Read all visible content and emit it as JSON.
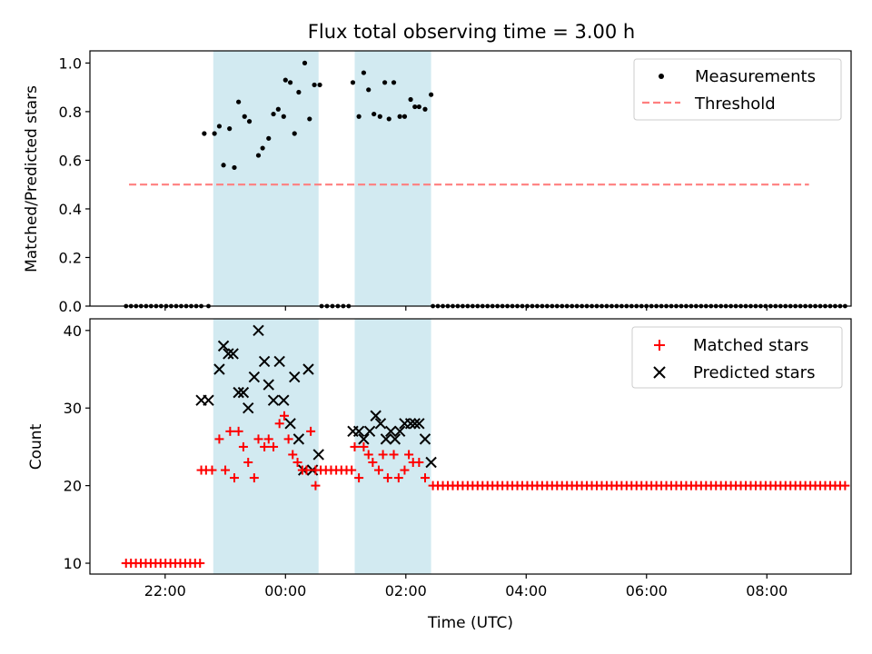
{
  "chart_data": {
    "title": "Flux total observing time = 3.00 h",
    "xlabel": "Time (UTC)",
    "x_unit": "hours (UTC); values ≥ 24 are times after midnight of the next day",
    "xlim": [
      20.75,
      33.4
    ],
    "xticks": [
      {
        "x": 22,
        "label": "22:00"
      },
      {
        "x": 24,
        "label": "00:00"
      },
      {
        "x": 26,
        "label": "02:00"
      },
      {
        "x": 28,
        "label": "04:00"
      },
      {
        "x": 30,
        "label": "06:00"
      },
      {
        "x": 32,
        "label": "08:00"
      }
    ],
    "colors": {
      "measurements": "#000000",
      "threshold": "#ff7f7f",
      "matched": "#ff0000",
      "predicted": "#000000",
      "span": "#add8e6"
    },
    "observing_spans": [
      {
        "start": 22.8,
        "end": 24.55
      },
      {
        "start": 25.15,
        "end": 26.42
      }
    ],
    "panels": [
      {
        "type": "scatter",
        "ylabel": "Matched/Predicted stars",
        "ylim": [
          0,
          1.05
        ],
        "yticks": [
          "0.0",
          "0.2",
          "0.4",
          "0.6",
          "0.8",
          "1.0"
        ],
        "legend": {
          "placement": "top-right",
          "entries": [
            "Measurements",
            "Threshold"
          ]
        },
        "threshold": {
          "name": "Threshold",
          "y": 0.5,
          "x_from": 21.4,
          "x_to": 32.7
        },
        "measurements": {
          "name": "Measurements",
          "zero_runs": [
            {
              "from": 21.35,
              "to": 22.6,
              "step": 0.083
            },
            {
              "from": 22.72,
              "to": 22.72,
              "step": 0.1
            },
            {
              "from": 24.6,
              "to": 25.05,
              "step": 0.083
            },
            {
              "from": 26.45,
              "to": 33.3,
              "step": 0.083
            }
          ],
          "points": [
            [
              22.65,
              0.71
            ],
            [
              22.82,
              0.71
            ],
            [
              22.9,
              0.74
            ],
            [
              22.97,
              0.58
            ],
            [
              23.07,
              0.73
            ],
            [
              23.15,
              0.57
            ],
            [
              23.22,
              0.84
            ],
            [
              23.32,
              0.78
            ],
            [
              23.4,
              0.76
            ],
            [
              23.55,
              0.62
            ],
            [
              23.62,
              0.65
            ],
            [
              23.72,
              0.69
            ],
            [
              23.8,
              0.79
            ],
            [
              23.88,
              0.81
            ],
            [
              23.97,
              0.78
            ],
            [
              24.0,
              0.93
            ],
            [
              24.08,
              0.92
            ],
            [
              24.15,
              0.71
            ],
            [
              24.22,
              0.88
            ],
            [
              24.32,
              1.0
            ],
            [
              24.4,
              0.77
            ],
            [
              24.48,
              0.91
            ],
            [
              24.57,
              0.91
            ],
            [
              25.12,
              0.92
            ],
            [
              25.22,
              0.78
            ],
            [
              25.3,
              0.96
            ],
            [
              25.38,
              0.89
            ],
            [
              25.47,
              0.79
            ],
            [
              25.57,
              0.78
            ],
            [
              25.65,
              0.92
            ],
            [
              25.72,
              0.77
            ],
            [
              25.8,
              0.92
            ],
            [
              25.9,
              0.78
            ],
            [
              25.98,
              0.78
            ],
            [
              26.08,
              0.85
            ],
            [
              26.15,
              0.82
            ],
            [
              26.22,
              0.82
            ],
            [
              26.32,
              0.81
            ],
            [
              26.42,
              0.87
            ]
          ]
        }
      },
      {
        "type": "scatter",
        "ylabel": "Count",
        "ylim": [
          8.6,
          41.5
        ],
        "yticks": [
          "10",
          "20",
          "30",
          "40"
        ],
        "legend": {
          "placement": "top-right",
          "entries": [
            "Matched stars",
            "Predicted stars"
          ]
        },
        "matched": {
          "name": "Matched stars",
          "runs": [
            {
              "from": 21.35,
              "to": 22.58,
              "step": 0.083,
              "y": 10
            },
            {
              "from": 24.5,
              "to": 25.1,
              "step": 0.083,
              "y": 22
            },
            {
              "from": 26.45,
              "to": 33.3,
              "step": 0.083,
              "y": 20
            }
          ],
          "points": [
            [
              22.6,
              22
            ],
            [
              22.68,
              22
            ],
            [
              22.78,
              22
            ],
            [
              22.9,
              26
            ],
            [
              23.0,
              22
            ],
            [
              23.08,
              27
            ],
            [
              23.15,
              21
            ],
            [
              23.22,
              27
            ],
            [
              23.3,
              25
            ],
            [
              23.38,
              23
            ],
            [
              23.48,
              21
            ],
            [
              23.55,
              26
            ],
            [
              23.65,
              25
            ],
            [
              23.72,
              26
            ],
            [
              23.8,
              25
            ],
            [
              23.9,
              28
            ],
            [
              23.98,
              29
            ],
            [
              24.05,
              26
            ],
            [
              24.12,
              24
            ],
            [
              24.2,
              23
            ],
            [
              24.28,
              22
            ],
            [
              24.35,
              22
            ],
            [
              24.42,
              27
            ],
            [
              24.5,
              20
            ],
            [
              25.15,
              25
            ],
            [
              25.22,
              21
            ],
            [
              25.3,
              25
            ],
            [
              25.38,
              24
            ],
            [
              25.45,
              23
            ],
            [
              25.55,
              22
            ],
            [
              25.62,
              24
            ],
            [
              25.7,
              21
            ],
            [
              25.8,
              24
            ],
            [
              25.88,
              21
            ],
            [
              25.98,
              22
            ],
            [
              26.05,
              24
            ],
            [
              26.12,
              23
            ],
            [
              26.22,
              23
            ],
            [
              26.32,
              21
            ]
          ]
        },
        "predicted": {
          "name": "Predicted stars",
          "points": [
            [
              22.6,
              31
            ],
            [
              22.72,
              31
            ],
            [
              22.9,
              35
            ],
            [
              22.97,
              38
            ],
            [
              23.05,
              37
            ],
            [
              23.13,
              37
            ],
            [
              23.22,
              32
            ],
            [
              23.3,
              32
            ],
            [
              23.38,
              30
            ],
            [
              23.48,
              34
            ],
            [
              23.55,
              40
            ],
            [
              23.65,
              36
            ],
            [
              23.72,
              33
            ],
            [
              23.8,
              31
            ],
            [
              23.9,
              36
            ],
            [
              23.97,
              31
            ],
            [
              24.08,
              28
            ],
            [
              24.15,
              34
            ],
            [
              24.22,
              26
            ],
            [
              24.3,
              22
            ],
            [
              24.38,
              35
            ],
            [
              24.45,
              22
            ],
            [
              24.55,
              24
            ],
            [
              25.12,
              27
            ],
            [
              25.22,
              27
            ],
            [
              25.3,
              26
            ],
            [
              25.4,
              27
            ],
            [
              25.5,
              29
            ],
            [
              25.58,
              28
            ],
            [
              25.67,
              26
            ],
            [
              25.75,
              27
            ],
            [
              25.82,
              26
            ],
            [
              25.9,
              27
            ],
            [
              25.98,
              28
            ],
            [
              26.08,
              28
            ],
            [
              26.15,
              28
            ],
            [
              26.22,
              28
            ],
            [
              26.32,
              26
            ],
            [
              26.42,
              23
            ]
          ]
        }
      }
    ]
  }
}
